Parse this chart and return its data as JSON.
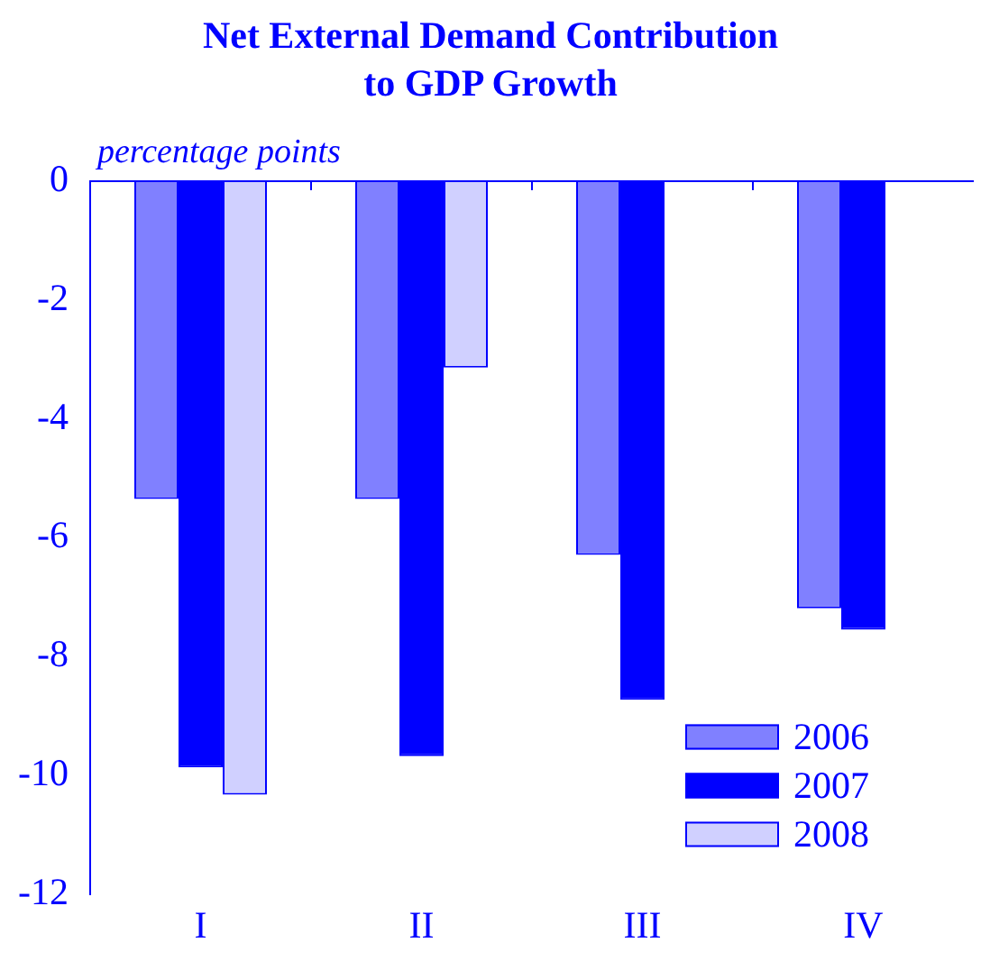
{
  "chart_data": {
    "type": "bar",
    "title": "Net External Demand Contribution\nto GDP Growth",
    "ylabel": "percentage points",
    "categories": [
      "I",
      "II",
      "III",
      "IV"
    ],
    "series": [
      {
        "name": "2006",
        "color": "#8080ff",
        "values": [
          -5.35,
          -5.35,
          -6.29,
          -7.19
        ]
      },
      {
        "name": "2007",
        "color": "#0000ff",
        "values": [
          -9.87,
          -9.68,
          -8.73,
          -7.55
        ]
      },
      {
        "name": "2008",
        "color": "#d0d0ff",
        "values": [
          -10.33,
          -3.14,
          null,
          null
        ]
      }
    ],
    "ylim": [
      -12,
      0
    ],
    "yticks": [
      -12,
      -10,
      -8,
      -6,
      -4,
      -2,
      0
    ],
    "grid": false,
    "legend": "bottom right"
  }
}
